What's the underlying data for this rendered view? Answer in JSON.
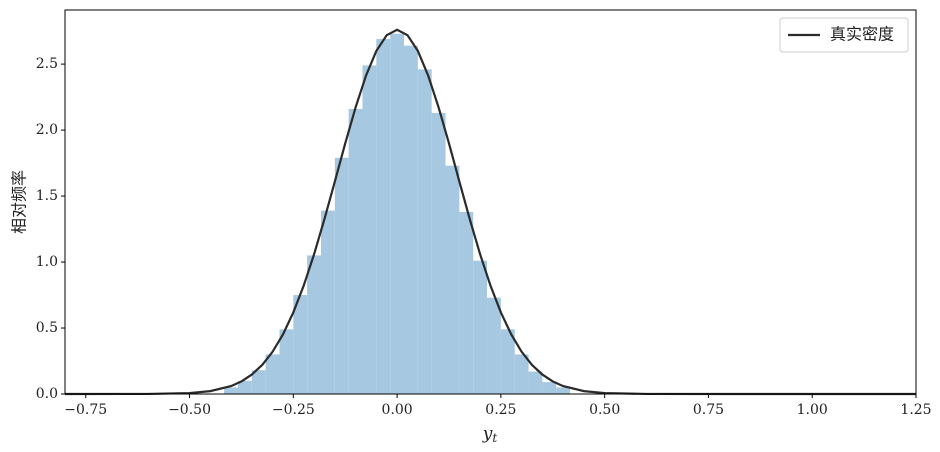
{
  "chart_data": {
    "type": "histogram",
    "bins": [
      -0.4167,
      -0.3833,
      -0.35,
      -0.3167,
      -0.2833,
      -0.25,
      -0.2167,
      -0.1833,
      -0.15,
      -0.1167,
      -0.0833,
      -0.05,
      -0.0167,
      0.0167,
      0.05,
      0.0833,
      0.1167,
      0.15,
      0.1833,
      0.2167,
      0.25,
      0.2833,
      0.3167,
      0.35,
      0.3833,
      0.4167
    ],
    "values": [
      0.05,
      0.1,
      0.18,
      0.3,
      0.49,
      0.75,
      1.05,
      1.39,
      1.79,
      2.16,
      2.49,
      2.69,
      2.73,
      2.64,
      2.46,
      2.13,
      1.73,
      1.38,
      1.01,
      0.73,
      0.49,
      0.3,
      0.17,
      0.09,
      0.05
    ],
    "color": "#a6c8e0",
    "series": [
      {
        "name": "真实密度",
        "color": "#2b2b2b",
        "type": "line",
        "x": [
          -0.8,
          -0.6,
          -0.5,
          -0.45,
          -0.4,
          -0.375,
          -0.35,
          -0.325,
          -0.3,
          -0.275,
          -0.25,
          -0.225,
          -0.2,
          -0.175,
          -0.15,
          -0.125,
          -0.1,
          -0.075,
          -0.05,
          -0.025,
          0,
          0.025,
          0.05,
          0.075,
          0.1,
          0.125,
          0.15,
          0.175,
          0.2,
          0.225,
          0.25,
          0.275,
          0.3,
          0.325,
          0.35,
          0.375,
          0.4,
          0.45,
          0.5,
          0.6,
          0.8,
          1.25
        ],
        "values": [
          0,
          0.0005,
          0.007,
          0.022,
          0.06,
          0.095,
          0.147,
          0.22,
          0.32,
          0.451,
          0.618,
          0.821,
          1.059,
          1.326,
          1.61,
          1.899,
          2.172,
          2.412,
          2.6,
          2.719,
          2.76,
          2.719,
          2.6,
          2.412,
          2.172,
          1.899,
          1.61,
          1.326,
          1.059,
          0.821,
          0.618,
          0.451,
          0.32,
          0.22,
          0.147,
          0.095,
          0.06,
          0.022,
          0.007,
          0.0005,
          0,
          0
        ]
      }
    ],
    "xlabel": {
      "text": "y",
      "subscript": "t"
    },
    "ylabel": "相对频率",
    "xlim": [
      -0.8,
      1.25
    ],
    "ylim": [
      0,
      2.91
    ],
    "xticks": [
      {
        "value": -0.75,
        "label": "−0.75"
      },
      {
        "value": -0.5,
        "label": "−0.50"
      },
      {
        "value": -0.25,
        "label": "−0.25"
      },
      {
        "value": 0,
        "label": "0.00"
      },
      {
        "value": 0.25,
        "label": "0.25"
      },
      {
        "value": 0.5,
        "label": "0.50"
      },
      {
        "value": 0.75,
        "label": "0.75"
      },
      {
        "value": 1,
        "label": "1.00"
      },
      {
        "value": 1.25,
        "label": "1.25"
      }
    ],
    "yticks": [
      {
        "value": 0,
        "label": "0.0"
      },
      0.5,
      {
        "value": 1,
        "label": "1.0"
      },
      1.5,
      {
        "value": 2,
        "label": "2.0"
      },
      2.5
    ],
    "legend": "upper right",
    "grid": false
  }
}
